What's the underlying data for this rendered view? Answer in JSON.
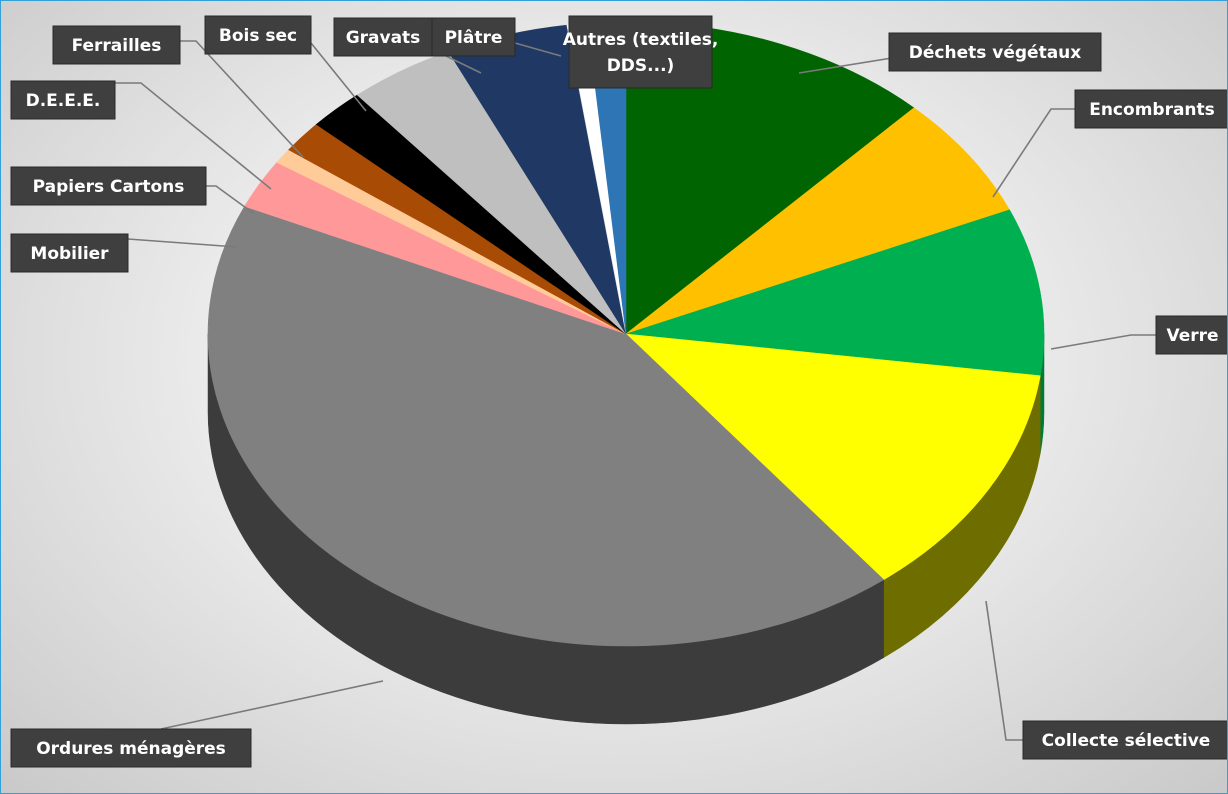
{
  "chart_data": {
    "type": "pie",
    "title": "",
    "legend": "none",
    "start_angle": 0,
    "direction": "clockwise",
    "slices": [
      {
        "label": "Déchets végétaux",
        "value": 12.3,
        "color": "#006400",
        "side": "#004a00"
      },
      {
        "label": "Encombrants",
        "value": 6.5,
        "color": "#ffc000",
        "side": "#b38700"
      },
      {
        "label": "Verre",
        "value": 8.8,
        "color": "#00b050",
        "side": "#007a38"
      },
      {
        "label": "Collecte sélective",
        "value": 12.5,
        "color": "#ffff00",
        "side": "#6e6e00"
      },
      {
        "label": "Ordures ménagères",
        "value": 43.0,
        "color": "#808080",
        "side": "#3c3c3c"
      },
      {
        "label": "Mobilier",
        "value": 2.6,
        "color": "#ff9999",
        "side": "#b36b6b"
      },
      {
        "label": "Papiers Cartons",
        "value": 0.8,
        "color": "#ffcc99",
        "side": "#b38f6b"
      },
      {
        "label": "D.E.E.E.",
        "value": 1.7,
        "color": "#a84b05",
        "side": "#6e3103"
      },
      {
        "label": "Ferrailles",
        "value": 2.2,
        "color": "#000000",
        "side": "#000000"
      },
      {
        "label": "Bois sec",
        "value": 4.2,
        "color": "#bfbfbf",
        "side": "#7f7f7f"
      },
      {
        "label": "Gravats",
        "value": 4.8,
        "color": "#203864",
        "side": "#15253f"
      },
      {
        "label": "Plâtre",
        "value": 0.8,
        "color": "#ffffff",
        "side": "#cccccc"
      },
      {
        "label": "Autres (textiles, DDS...)",
        "label_lines": [
          "Autres (textiles,",
          "DDS...)"
        ],
        "value": 1.5,
        "color": "#2e75b6",
        "side": "#1f4f7a"
      }
    ]
  }
}
